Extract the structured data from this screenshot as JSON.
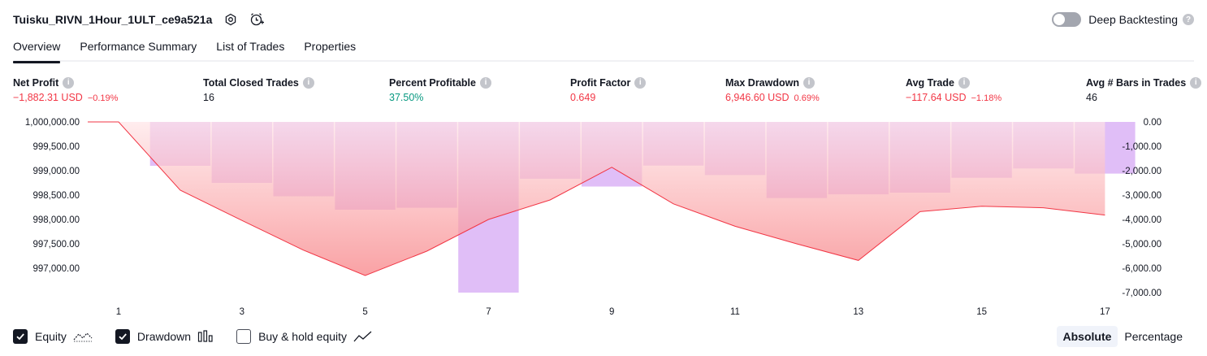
{
  "header": {
    "title": "Tuisku_RIVN_1Hour_1ULT_ce9a521a",
    "settings_icon": "gear-icon",
    "alert_icon": "add-alert-icon",
    "deep_backtesting_label": "Deep Backtesting",
    "deep_backtesting_enabled": false
  },
  "tabs": [
    {
      "label": "Overview",
      "active": true
    },
    {
      "label": "Performance Summary",
      "active": false
    },
    {
      "label": "List of Trades",
      "active": false
    },
    {
      "label": "Properties",
      "active": false
    }
  ],
  "metrics": {
    "net_profit": {
      "label": "Net Profit",
      "value": "−1,882.31 USD",
      "pct": "−0.19%"
    },
    "total_closed_trades": {
      "label": "Total Closed Trades",
      "value": "16"
    },
    "percent_profitable": {
      "label": "Percent Profitable",
      "value": "37.50%"
    },
    "profit_factor": {
      "label": "Profit Factor",
      "value": "0.649"
    },
    "max_drawdown": {
      "label": "Max Drawdown",
      "value": "6,946.60 USD",
      "pct": "0.69%"
    },
    "avg_trade": {
      "label": "Avg Trade",
      "value": "−117.64 USD",
      "pct": "−1.18%"
    },
    "avg_bars": {
      "label": "Avg # Bars in Trades",
      "value": "46"
    }
  },
  "chart_data": {
    "type": "line",
    "x": [
      1,
      2,
      3,
      4,
      5,
      6,
      7,
      8,
      9,
      10,
      11,
      12,
      13,
      14,
      15,
      16,
      17
    ],
    "x_tick_labels": [
      "1",
      "3",
      "5",
      "7",
      "9",
      "11",
      "13",
      "15",
      "17"
    ],
    "x_ticks": [
      1,
      3,
      5,
      7,
      9,
      11,
      13,
      15,
      17
    ],
    "left_axis": {
      "ticks": [
        1000000,
        999500,
        999000,
        998500,
        998000,
        997500,
        997000
      ],
      "tick_labels": [
        "1,000,000.00",
        "999,500.00",
        "999,000.00",
        "998,500.00",
        "998,000.00",
        "997,500.00",
        "997,000.00"
      ],
      "range": [
        996500,
        1000000
      ]
    },
    "right_axis": {
      "ticks": [
        0,
        -1000,
        -2000,
        -3000,
        -4000,
        -5000,
        -6000,
        -7000
      ],
      "tick_labels": [
        "0.00",
        "-1,000.00",
        "-2,000.00",
        "-3,000.00",
        "-4,000.00",
        "-5,000.00",
        "-6,000.00",
        "-7,000.00"
      ],
      "range": [
        -7000,
        0
      ]
    },
    "series": [
      {
        "name": "Equity",
        "kind": "area-line",
        "axis": "left",
        "x_start": 0.5,
        "start_value": 1000000,
        "values": [
          1000000,
          998600,
          997980,
          997370,
          996850,
          997350,
          998000,
          998400,
          999070,
          998320,
          997860,
          997500,
          997160,
          998160,
          998270,
          998240,
          998090
        ],
        "line_color": "#f23645",
        "fill_top": "#ffe4e6",
        "fill_bottom": "#f77c80"
      },
      {
        "name": "Drawdown",
        "kind": "bar",
        "axis": "right",
        "values": [
          0,
          -1800,
          -2500,
          -3050,
          -3600,
          -3520,
          -7000,
          -2330,
          -2650,
          -1790,
          -2180,
          -3120,
          -2970,
          -2900,
          -2290,
          -1910,
          -2120
        ],
        "color": "#cf9bf2"
      }
    ]
  },
  "legend": [
    {
      "label": "Equity",
      "checked": true,
      "icon": "line-chart-icon"
    },
    {
      "label": "Drawdown",
      "checked": true,
      "icon": "bar-chart-icon"
    },
    {
      "label": "Buy & hold equity",
      "checked": false,
      "icon": "line-chart-icon"
    }
  ],
  "modes": [
    {
      "label": "Absolute",
      "active": true
    },
    {
      "label": "Percentage",
      "active": false
    }
  ]
}
